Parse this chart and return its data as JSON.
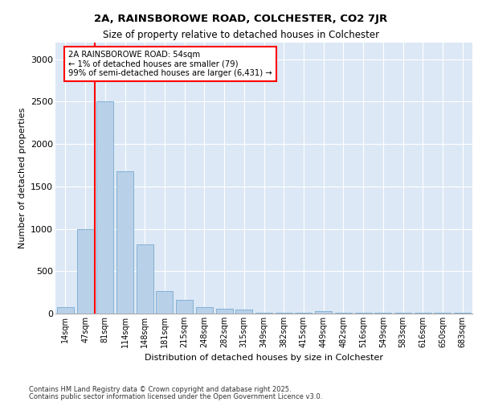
{
  "title1": "2A, RAINSBOROWE ROAD, COLCHESTER, CO2 7JR",
  "title2": "Size of property relative to detached houses in Colchester",
  "xlabel": "Distribution of detached houses by size in Colchester",
  "ylabel": "Number of detached properties",
  "categories": [
    "14sqm",
    "47sqm",
    "81sqm",
    "114sqm",
    "148sqm",
    "181sqm",
    "215sqm",
    "248sqm",
    "282sqm",
    "315sqm",
    "349sqm",
    "382sqm",
    "415sqm",
    "449sqm",
    "482sqm",
    "516sqm",
    "549sqm",
    "583sqm",
    "616sqm",
    "650sqm",
    "683sqm"
  ],
  "values": [
    75,
    1000,
    2500,
    1680,
    820,
    270,
    160,
    80,
    60,
    50,
    10,
    5,
    5,
    30,
    5,
    5,
    5,
    5,
    5,
    5,
    5
  ],
  "bar_color": "#b8d0e8",
  "bar_edge_color": "#7aaacf",
  "annotation_title": "2A RAINSBOROWE ROAD: 54sqm",
  "annotation_line1": "← 1% of detached houses are smaller (79)",
  "annotation_line2": "99% of semi-detached houses are larger (6,431) →",
  "vline_index": 1.5,
  "ylim": [
    0,
    3200
  ],
  "yticks": [
    0,
    500,
    1000,
    1500,
    2000,
    2500,
    3000
  ],
  "footer1": "Contains HM Land Registry data © Crown copyright and database right 2025.",
  "footer2": "Contains public sector information licensed under the Open Government Licence v3.0.",
  "bg_color": "#dce8f5",
  "grid_color": "#ffffff",
  "fig_bg": "#ffffff"
}
